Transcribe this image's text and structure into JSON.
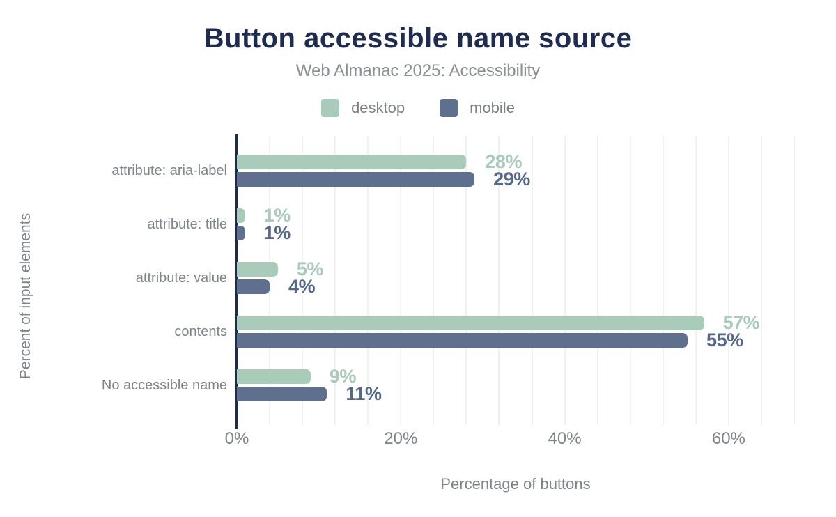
{
  "header": {
    "title": "Button accessible name source",
    "subtitle": "Web Almanac 2025: Accessibility"
  },
  "chart_data": {
    "type": "bar",
    "orientation": "horizontal",
    "title": "Button accessible name source",
    "subtitle": "Web Almanac 2025: Accessibility",
    "categories": [
      "attribute: aria-label",
      "attribute: title",
      "attribute: value",
      "contents",
      "No accessible name"
    ],
    "series": [
      {
        "name": "desktop",
        "color": "#a9cbb9",
        "label_color": "#a9cbb9",
        "values": [
          28,
          1,
          5,
          57,
          9
        ]
      },
      {
        "name": "mobile",
        "color": "#5e708e",
        "label_color": "#56688a",
        "values": [
          29,
          1,
          4,
          55,
          11
        ]
      }
    ],
    "value_suffix": "%",
    "xlabel": "Percentage of buttons",
    "ylabel": "Percent of input elements",
    "xlim": [
      0,
      68
    ],
    "xticks": [
      {
        "value": 0,
        "label": "0%"
      },
      {
        "value": 20,
        "label": "20%"
      },
      {
        "value": 40,
        "label": "40%"
      },
      {
        "value": 60,
        "label": "60%"
      }
    ],
    "grid_step": 4,
    "grid": "vertical",
    "legend_position": "top"
  },
  "colors": {
    "title": "#1e2c52",
    "axis_line": "#1e2c52",
    "text_gray": "#7e848c",
    "gridline": "#f1f0f1"
  }
}
